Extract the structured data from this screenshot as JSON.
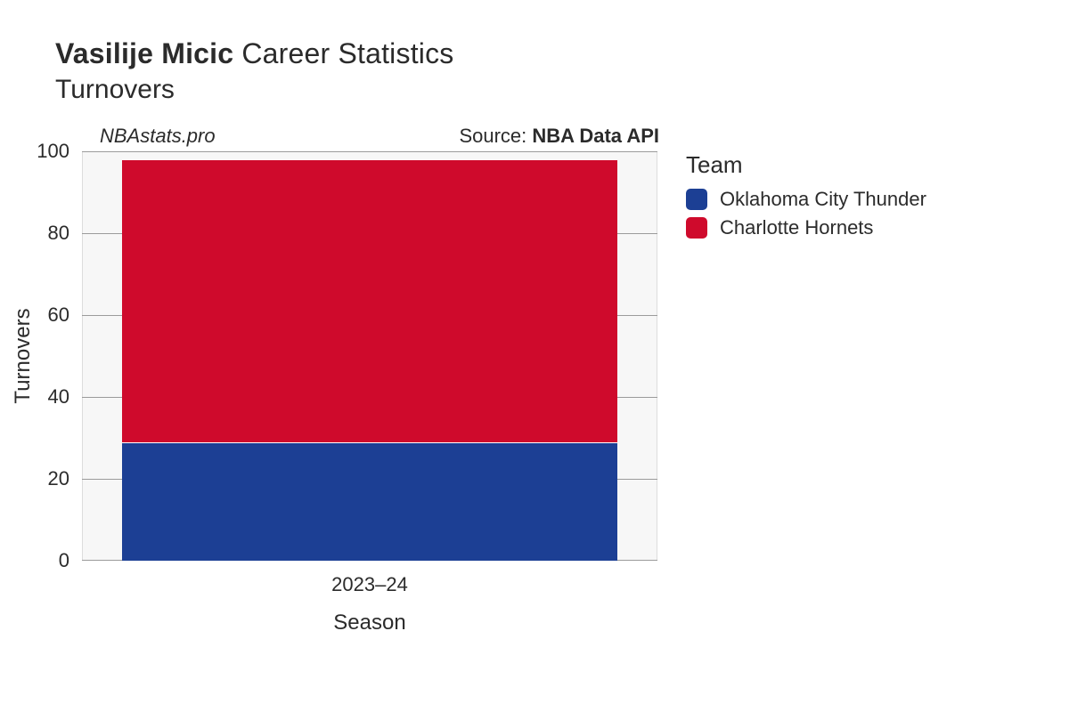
{
  "title": {
    "player_name": "Vasilije Micic",
    "suffix": "Career Statistics",
    "metric": "Turnovers",
    "title_fontsize": 32,
    "subtitle_fontsize": 30,
    "text_color": "#2b2b2b"
  },
  "watermark": "NBAstats.pro",
  "source": {
    "label": "Source: ",
    "value": "NBA Data API"
  },
  "chart": {
    "type": "stacked-bar",
    "background_color": "#f7f7f7",
    "grid_color": "#9b9b9b",
    "frame_color": "#dddddd",
    "xlabel": "Season",
    "ylabel": "Turnovers",
    "axis_label_fontsize": 24,
    "tick_fontsize": 22,
    "ylim": [
      0,
      100
    ],
    "ytick_step": 20,
    "yticks": [
      0,
      20,
      40,
      60,
      80,
      100
    ],
    "categories": [
      "2023–24"
    ],
    "bar_width": 0.86,
    "series": [
      {
        "name": "Oklahoma City Thunder",
        "color": "#1c3f94",
        "values": [
          29
        ]
      },
      {
        "name": "Charlotte Hornets",
        "color": "#cf0a2c",
        "values": [
          69
        ]
      }
    ]
  },
  "legend": {
    "title": "Team",
    "title_fontsize": 26,
    "item_fontsize": 22,
    "items": [
      {
        "label": "Oklahoma City Thunder",
        "color": "#1c3f94"
      },
      {
        "label": "Charlotte Hornets",
        "color": "#cf0a2c"
      }
    ]
  }
}
